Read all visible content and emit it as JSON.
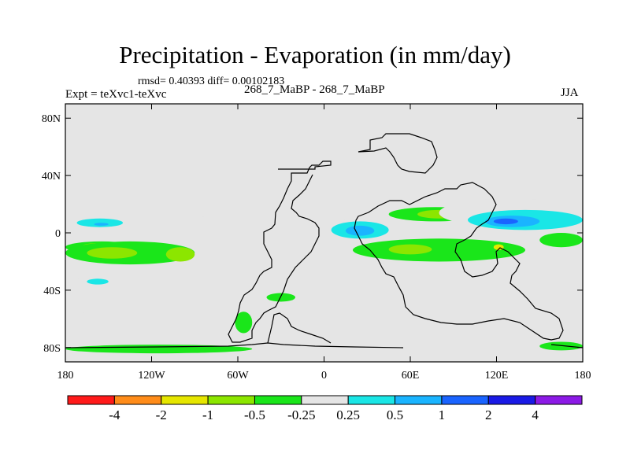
{
  "header": {
    "title": "Precipitation - Evaporation (in mm/day)",
    "stats": "rmsd= 0.40393 diff= 0.00102183",
    "expt": "Expt = teXvc1-teXvc",
    "case": "268_7_MaBP - 268_7_MaBP",
    "season": "JJA"
  },
  "chart_data": {
    "type": "heatmap",
    "title": "Precipitation - Evaporation (in mm/day)",
    "xlabel": "",
    "ylabel": "",
    "x_ticks": [
      {
        "value": -180,
        "label": "180"
      },
      {
        "value": -120,
        "label": "120W"
      },
      {
        "value": -60,
        "label": "60W"
      },
      {
        "value": 0,
        "label": "0"
      },
      {
        "value": 60,
        "label": "60E"
      },
      {
        "value": 120,
        "label": "120E"
      },
      {
        "value": 180,
        "label": "180"
      }
    ],
    "y_ticks": [
      {
        "value": 80,
        "label": "80N"
      },
      {
        "value": 40,
        "label": "40N"
      },
      {
        "value": 0,
        "label": "0"
      },
      {
        "value": -40,
        "label": "40S"
      },
      {
        "value": -80,
        "label": "80S"
      }
    ],
    "xlim": [
      -180,
      180
    ],
    "ylim": [
      -90,
      90
    ],
    "background_color": "#e5e5e5",
    "colorbar": {
      "labels": [
        "-4",
        "-2",
        "-1",
        "-0.5",
        "-0.25",
        "0.25",
        "0.5",
        "1",
        "2",
        "4"
      ],
      "colors": [
        "#ff1a1a",
        "#ff8c1a",
        "#e6e600",
        "#8ce600",
        "#1ae61a",
        "#e5e5e5",
        "#1ae6e6",
        "#1ab4ff",
        "#1a64ff",
        "#1a1ae6",
        "#8c1ae6"
      ]
    },
    "regions": [
      {
        "level": 4,
        "lon": [
          -180,
          -130
        ],
        "lat": [
          -14,
          -6
        ]
      },
      {
        "level": 3,
        "lon": [
          -168,
          -140
        ],
        "lat": [
          -11,
          -7
        ]
      },
      {
        "level": 5,
        "lon": [
          -180,
          -50
        ],
        "lat": [
          2,
          12
        ]
      },
      {
        "level": 6,
        "lon": [
          -172,
          -140
        ],
        "lat": [
          4,
          10
        ]
      },
      {
        "level": 7,
        "lon": [
          -160,
          -150
        ],
        "lat": [
          5,
          7
        ]
      },
      {
        "level": 5,
        "lon": [
          -180,
          -160
        ],
        "lat": [
          18,
          26
        ]
      },
      {
        "level": 4,
        "lon": [
          -180,
          -90
        ],
        "lat": [
          -22,
          -6
        ]
      },
      {
        "level": 3,
        "lon": [
          -165,
          -130
        ],
        "lat": [
          -18,
          -10
        ]
      },
      {
        "level": 3,
        "lon": [
          -110,
          -90
        ],
        "lat": [
          -20,
          -10
        ]
      },
      {
        "level": 5,
        "lon": [
          -175,
          -130
        ],
        "lat": [
          -40,
          -30
        ]
      },
      {
        "level": 6,
        "lon": [
          -165,
          -150
        ],
        "lat": [
          -36,
          -32
        ]
      },
      {
        "level": 5,
        "lon": [
          -180,
          -140
        ],
        "lat": [
          -56,
          -46
        ]
      },
      {
        "level": 4,
        "lon": [
          -62,
          -50
        ],
        "lat": [
          -70,
          -55
        ]
      },
      {
        "level": 4,
        "lon": [
          -40,
          -20
        ],
        "lat": [
          -48,
          -42
        ]
      },
      {
        "level": 4,
        "lon": [
          -180,
          -50
        ],
        "lat": [
          -84,
          -78
        ]
      },
      {
        "level": 4,
        "lon": [
          150,
          180
        ],
        "lat": [
          -82,
          -76
        ]
      },
      {
        "level": 5,
        "lon": [
          0,
          50
        ],
        "lat": [
          -8,
          10
        ]
      },
      {
        "level": 6,
        "lon": [
          5,
          45
        ],
        "lat": [
          -4,
          8
        ]
      },
      {
        "level": 7,
        "lon": [
          15,
          35
        ],
        "lat": [
          -2,
          5
        ]
      },
      {
        "level": 4,
        "lon": [
          20,
          140
        ],
        "lat": [
          -20,
          -4
        ]
      },
      {
        "level": 3,
        "lon": [
          45,
          75
        ],
        "lat": [
          -15,
          -8
        ]
      },
      {
        "level": 4,
        "lon": [
          45,
          110
        ],
        "lat": [
          8,
          18
        ]
      },
      {
        "level": 3,
        "lon": [
          65,
          95
        ],
        "lat": [
          10,
          16
        ]
      },
      {
        "level": 5,
        "lon": [
          80,
          180
        ],
        "lat": [
          4,
          24
        ]
      },
      {
        "level": 6,
        "lon": [
          100,
          180
        ],
        "lat": [
          2,
          16
        ]
      },
      {
        "level": 7,
        "lon": [
          112,
          150
        ],
        "lat": [
          4,
          12
        ]
      },
      {
        "level": 8,
        "lon": [
          118,
          135
        ],
        "lat": [
          6,
          10
        ]
      },
      {
        "level": 5,
        "lon": [
          60,
          170
        ],
        "lat": [
          -34,
          -22
        ]
      },
      {
        "level": 4,
        "lon": [
          150,
          180
        ],
        "lat": [
          -10,
          0
        ]
      },
      {
        "level": 2,
        "lon": [
          118,
          125
        ],
        "lat": [
          -12,
          -8
        ]
      }
    ]
  }
}
